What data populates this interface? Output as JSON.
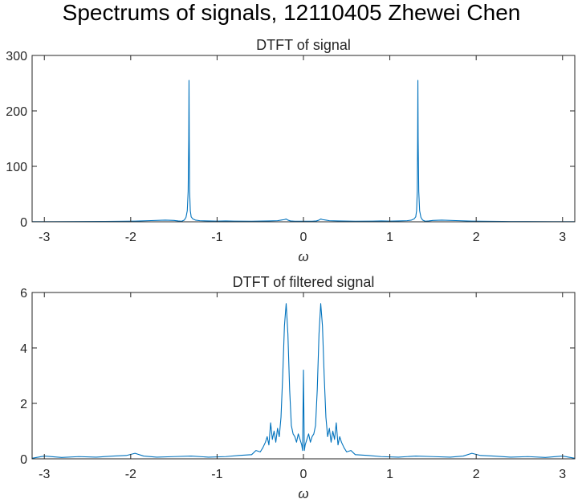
{
  "figure_title": "Spectrums of signals, 12110405 Zhewei Chen",
  "chart_data": [
    {
      "type": "line",
      "title": "DTFT of signal",
      "xlabel": "ω",
      "ylabel": "",
      "xlim": [
        -3.1416,
        3.1416
      ],
      "ylim": [
        0,
        300
      ],
      "xticks": [
        -3,
        -2,
        -1,
        0,
        1,
        2,
        3
      ],
      "xtick_labels": [
        "-3",
        "-2",
        "-1",
        "0",
        "1",
        "2",
        "3"
      ],
      "yticks": [
        0,
        100,
        200,
        300
      ],
      "ytick_labels": [
        "0",
        "100",
        "200",
        "300"
      ],
      "grid": false,
      "color": "#0072BD",
      "series": [
        {
          "x": [
            -3.1416,
            -2.9,
            -2.6,
            -2.3,
            -2.05,
            -1.95,
            -1.8,
            -1.6,
            -1.5,
            -1.45,
            -1.41,
            -1.38,
            -1.36,
            -1.345,
            -1.335,
            -1.328,
            -1.325,
            -1.322,
            -1.318,
            -1.31,
            -1.3,
            -1.28,
            -1.25,
            -1.2,
            -1.1,
            -1.0,
            -0.9,
            -0.8,
            -0.6,
            -0.4,
            -0.3,
            -0.26,
            -0.22,
            -0.2,
            -0.18,
            -0.15,
            -0.1,
            0.0,
            0.1,
            0.15,
            0.18,
            0.2,
            0.22,
            0.26,
            0.3,
            0.4,
            0.6,
            0.8,
            0.9,
            1.0,
            1.1,
            1.2,
            1.25,
            1.28,
            1.3,
            1.31,
            1.318,
            1.322,
            1.325,
            1.328,
            1.335,
            1.345,
            1.36,
            1.38,
            1.41,
            1.45,
            1.5,
            1.6,
            1.8,
            1.95,
            2.05,
            2.3,
            2.6,
            2.9,
            3.1416
          ],
          "y": [
            0.2,
            0.3,
            0.4,
            0.6,
            1,
            1.2,
            2,
            3,
            2.5,
            1.5,
            1,
            3,
            8,
            20,
            55,
            150,
            255,
            150,
            55,
            20,
            9,
            5,
            3,
            2,
            1.5,
            1.2,
            1.5,
            1.2,
            1,
            1.5,
            2,
            3,
            4,
            5,
            3,
            1.5,
            1,
            1,
            1,
            1.5,
            3,
            5,
            4,
            3,
            2,
            1.5,
            1,
            1.2,
            1.5,
            1.2,
            1.5,
            2,
            3,
            5,
            9,
            20,
            55,
            150,
            255,
            150,
            55,
            20,
            8,
            3,
            1,
            1.5,
            2.5,
            3,
            2,
            1.2,
            1,
            0.6,
            0.4,
            0.3,
            0.2
          ]
        }
      ]
    },
    {
      "type": "line",
      "title": "DTFT of filtered signal",
      "xlabel": "ω",
      "ylabel": "",
      "xlim": [
        -3.1416,
        3.1416
      ],
      "ylim": [
        0,
        6
      ],
      "xticks": [
        -3,
        -2,
        -1,
        0,
        1,
        2,
        3
      ],
      "xtick_labels": [
        "-3",
        "-2",
        "-1",
        "0",
        "1",
        "2",
        "3"
      ],
      "yticks": [
        0,
        2,
        4,
        6
      ],
      "ytick_labels": [
        "0",
        "2",
        "4",
        "6"
      ],
      "grid": false,
      "color": "#0072BD",
      "series": [
        {
          "x": [
            -3.1416,
            -3.0,
            -2.8,
            -2.6,
            -2.4,
            -2.2,
            -2.05,
            -1.95,
            -1.85,
            -1.7,
            -1.5,
            -1.3,
            -1.1,
            -0.9,
            -0.75,
            -0.6,
            -0.55,
            -0.5,
            -0.47,
            -0.44,
            -0.42,
            -0.4,
            -0.38,
            -0.36,
            -0.34,
            -0.32,
            -0.3,
            -0.28,
            -0.26,
            -0.24,
            -0.22,
            -0.2,
            -0.18,
            -0.16,
            -0.14,
            -0.12,
            -0.1,
            -0.08,
            -0.06,
            -0.04,
            -0.02,
            -0.01,
            0.0,
            0.01,
            0.02,
            0.04,
            0.06,
            0.08,
            0.1,
            0.12,
            0.14,
            0.16,
            0.18,
            0.2,
            0.22,
            0.24,
            0.26,
            0.28,
            0.3,
            0.32,
            0.34,
            0.36,
            0.38,
            0.4,
            0.42,
            0.44,
            0.47,
            0.5,
            0.55,
            0.6,
            0.75,
            0.9,
            1.1,
            1.3,
            1.5,
            1.7,
            1.85,
            1.95,
            2.05,
            2.2,
            2.4,
            2.6,
            2.8,
            3.0,
            3.1416
          ],
          "y": [
            0.02,
            0.1,
            0.05,
            0.08,
            0.06,
            0.1,
            0.12,
            0.2,
            0.1,
            0.06,
            0.08,
            0.1,
            0.06,
            0.08,
            0.12,
            0.15,
            0.3,
            0.25,
            0.4,
            0.6,
            0.8,
            0.5,
            1.3,
            0.7,
            1.0,
            0.6,
            1.1,
            0.8,
            1.5,
            3.0,
            4.8,
            5.6,
            4.5,
            2.5,
            1.2,
            0.9,
            0.8,
            0.6,
            0.9,
            0.7,
            0.5,
            0.3,
            3.2,
            0.3,
            0.5,
            0.7,
            0.9,
            0.6,
            0.8,
            0.9,
            1.2,
            2.5,
            4.5,
            5.6,
            4.8,
            3.0,
            1.5,
            0.8,
            1.1,
            0.6,
            1.0,
            0.7,
            1.3,
            0.5,
            0.8,
            0.6,
            0.4,
            0.25,
            0.3,
            0.15,
            0.12,
            0.08,
            0.06,
            0.1,
            0.08,
            0.06,
            0.1,
            0.2,
            0.12,
            0.1,
            0.06,
            0.08,
            0.05,
            0.1,
            0.02
          ]
        }
      ]
    }
  ]
}
